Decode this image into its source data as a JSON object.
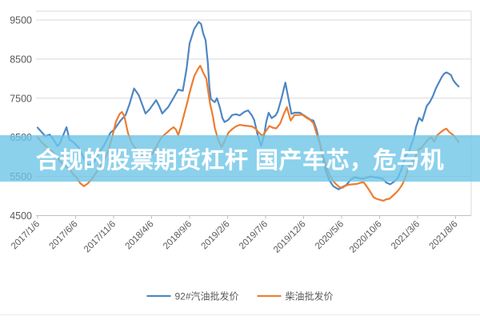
{
  "title_overlay": {
    "text": "合规的股票期货杠杆 国产车芯，危与机",
    "band_color": "rgba(110,198,231,0.8)",
    "text_color": "#ffffff"
  },
  "chart_data": {
    "type": "line",
    "title": "",
    "xlabel": "",
    "ylabel": "",
    "grid": "horizontal",
    "legend_position": "bottom",
    "ylim": [
      4500,
      9500
    ],
    "y_ticks": [
      9500,
      8500,
      7500,
      6500,
      5500,
      4500
    ],
    "x_tick_labels": [
      "2017/1/6",
      "2017/6/6",
      "2017/11/6",
      "2018/4/6",
      "2018/9/6",
      "2019/2/6",
      "2019/7/6",
      "2019/12/6",
      "2020/5/6",
      "2020/10/6",
      "2021/3/6",
      "2021/8/6"
    ],
    "x_tick_month_indices": [
      0,
      5,
      10,
      15,
      20,
      25,
      30,
      35,
      40,
      45,
      50,
      55
    ],
    "x_unit": "months since 2017/1/6",
    "colors": {
      "grid": "#d9d9d9",
      "axis": "#bfbfbf",
      "tick_text": "#595959"
    },
    "series": [
      {
        "name": "92#汽油批发价",
        "color": "#4e87c3",
        "points": [
          [
            0,
            6750
          ],
          [
            1,
            6530
          ],
          [
            1.6,
            6570
          ],
          [
            2.1,
            6440
          ],
          [
            2.6,
            6280
          ],
          [
            2.9,
            6330
          ],
          [
            3.8,
            6760
          ],
          [
            4.2,
            6440
          ],
          [
            4.7,
            6380
          ],
          [
            5.4,
            6240
          ],
          [
            5.9,
            6030
          ],
          [
            6.4,
            5860
          ],
          [
            6.8,
            5770
          ],
          [
            7.4,
            5860
          ],
          [
            7.8,
            6000
          ],
          [
            8.2,
            6140
          ],
          [
            8.7,
            6280
          ],
          [
            9.6,
            6620
          ],
          [
            10.1,
            6700
          ],
          [
            10.8,
            6900
          ],
          [
            11.6,
            7080
          ],
          [
            12.1,
            7350
          ],
          [
            12.7,
            7750
          ],
          [
            13.3,
            7580
          ],
          [
            13.8,
            7320
          ],
          [
            14.2,
            7110
          ],
          [
            14.7,
            7210
          ],
          [
            15.6,
            7450
          ],
          [
            16,
            7300
          ],
          [
            16.4,
            7110
          ],
          [
            17.2,
            7280
          ],
          [
            17.9,
            7510
          ],
          [
            18.5,
            7720
          ],
          [
            19.1,
            7690
          ],
          [
            19.6,
            8250
          ],
          [
            20,
            8900
          ],
          [
            20.6,
            9270
          ],
          [
            21.2,
            9450
          ],
          [
            21.5,
            9400
          ],
          [
            21.8,
            9150
          ],
          [
            22.1,
            8980
          ],
          [
            22.4,
            8400
          ],
          [
            22.6,
            7800
          ],
          [
            22.8,
            7480
          ],
          [
            23.3,
            7400
          ],
          [
            23.6,
            7500
          ],
          [
            24,
            7250
          ],
          [
            24.3,
            7000
          ],
          [
            24.6,
            6890
          ],
          [
            25.1,
            6950
          ],
          [
            25.6,
            7070
          ],
          [
            26.1,
            7090
          ],
          [
            26.6,
            7060
          ],
          [
            27.2,
            7150
          ],
          [
            27.7,
            7190
          ],
          [
            28.2,
            7060
          ],
          [
            28.5,
            6940
          ],
          [
            28.9,
            6600
          ],
          [
            29.4,
            6280
          ],
          [
            29.8,
            6550
          ],
          [
            30.1,
            6900
          ],
          [
            30.4,
            7130
          ],
          [
            30.8,
            6990
          ],
          [
            31.3,
            7060
          ],
          [
            31.6,
            7160
          ],
          [
            32.1,
            7500
          ],
          [
            32.6,
            7900
          ],
          [
            33.1,
            7400
          ],
          [
            33.4,
            7100
          ],
          [
            33.8,
            7130
          ],
          [
            34.5,
            7130
          ],
          [
            35.3,
            7030
          ],
          [
            35.9,
            6950
          ],
          [
            36.3,
            6930
          ],
          [
            36.7,
            6700
          ],
          [
            37.2,
            6300
          ],
          [
            37.6,
            5900
          ],
          [
            38,
            5600
          ],
          [
            38.4,
            5400
          ],
          [
            38.9,
            5250
          ],
          [
            39.6,
            5170
          ],
          [
            40.1,
            5230
          ],
          [
            40.6,
            5280
          ],
          [
            41.2,
            5420
          ],
          [
            41.7,
            5480
          ],
          [
            42.2,
            5460
          ],
          [
            42.7,
            5440
          ],
          [
            43.3,
            5470
          ],
          [
            43.8,
            5500
          ],
          [
            44.3,
            5480
          ],
          [
            44.8,
            5470
          ],
          [
            45.4,
            5440
          ],
          [
            45.9,
            5340
          ],
          [
            46.4,
            5300
          ],
          [
            46.9,
            5370
          ],
          [
            47.4,
            5460
          ],
          [
            47.9,
            5700
          ],
          [
            48.4,
            6020
          ],
          [
            48.9,
            6160
          ],
          [
            49.5,
            6500
          ],
          [
            49.8,
            6770
          ],
          [
            50.2,
            7000
          ],
          [
            50.6,
            6920
          ],
          [
            51.2,
            7300
          ],
          [
            51.6,
            7400
          ],
          [
            52,
            7550
          ],
          [
            52.4,
            7750
          ],
          [
            52.8,
            7900
          ],
          [
            53.2,
            8050
          ],
          [
            53.5,
            8130
          ],
          [
            53.8,
            8160
          ],
          [
            54.1,
            8130
          ],
          [
            54.4,
            8090
          ],
          [
            54.7,
            7960
          ],
          [
            55,
            7880
          ],
          [
            55.4,
            7800
          ]
        ]
      },
      {
        "name": "柴油批发价",
        "color": "#ED7D31",
        "points": [
          [
            0,
            6500
          ],
          [
            0.5,
            6380
          ],
          [
            1.1,
            6270
          ],
          [
            1.6,
            6190
          ],
          [
            2.1,
            6100
          ],
          [
            2.6,
            5980
          ],
          [
            3.2,
            5840
          ],
          [
            3.7,
            5750
          ],
          [
            4.2,
            5690
          ],
          [
            4.7,
            5550
          ],
          [
            5.1,
            5480
          ],
          [
            5.6,
            5330
          ],
          [
            6.1,
            5250
          ],
          [
            6.6,
            5320
          ],
          [
            7.2,
            5450
          ],
          [
            7.7,
            5600
          ],
          [
            8.2,
            5730
          ],
          [
            8.7,
            5900
          ],
          [
            9.3,
            6150
          ],
          [
            9.8,
            6500
          ],
          [
            10.3,
            6900
          ],
          [
            10.8,
            7100
          ],
          [
            11.1,
            7150
          ],
          [
            11.4,
            7050
          ],
          [
            11.9,
            6600
          ],
          [
            12.4,
            6350
          ],
          [
            12.9,
            6200
          ],
          [
            13.5,
            6100
          ],
          [
            14,
            6000
          ],
          [
            14.4,
            5960
          ],
          [
            15.1,
            6080
          ],
          [
            15.6,
            6250
          ],
          [
            16,
            6400
          ],
          [
            16.4,
            6520
          ],
          [
            16.9,
            6600
          ],
          [
            17.4,
            6690
          ],
          [
            17.9,
            6760
          ],
          [
            18.2,
            6700
          ],
          [
            18.5,
            6560
          ],
          [
            18.9,
            6800
          ],
          [
            19.3,
            7100
          ],
          [
            19.7,
            7400
          ],
          [
            20,
            7640
          ],
          [
            20.3,
            7850
          ],
          [
            20.6,
            8060
          ],
          [
            21.1,
            8250
          ],
          [
            21.4,
            8330
          ],
          [
            21.8,
            8150
          ],
          [
            22.2,
            8000
          ],
          [
            22.5,
            7600
          ],
          [
            22.7,
            7360
          ],
          [
            23.1,
            7000
          ],
          [
            23.3,
            6750
          ],
          [
            23.6,
            6550
          ],
          [
            23.8,
            6420
          ],
          [
            24.2,
            6250
          ],
          [
            24.6,
            6400
          ],
          [
            25.1,
            6620
          ],
          [
            25.6,
            6710
          ],
          [
            26.1,
            6780
          ],
          [
            26.6,
            6820
          ],
          [
            27.2,
            6800
          ],
          [
            27.7,
            6790
          ],
          [
            28.2,
            6780
          ],
          [
            28.7,
            6720
          ],
          [
            29.2,
            6600
          ],
          [
            29.6,
            6540
          ],
          [
            30,
            6650
          ],
          [
            30.5,
            6790
          ],
          [
            30.9,
            6750
          ],
          [
            31.4,
            6730
          ],
          [
            31.9,
            6850
          ],
          [
            32.4,
            7100
          ],
          [
            32.8,
            7270
          ],
          [
            33.3,
            6930
          ],
          [
            33.8,
            7070
          ],
          [
            34.3,
            7070
          ],
          [
            34.8,
            7080
          ],
          [
            35.4,
            7000
          ],
          [
            35.9,
            6940
          ],
          [
            36.3,
            6860
          ],
          [
            36.7,
            6600
          ],
          [
            37.2,
            6300
          ],
          [
            37.6,
            6000
          ],
          [
            38,
            5750
          ],
          [
            38.4,
            5550
          ],
          [
            38.8,
            5400
          ],
          [
            39.3,
            5300
          ],
          [
            39.7,
            5230
          ],
          [
            40.1,
            5210
          ],
          [
            40.5,
            5260
          ],
          [
            40.9,
            5290
          ],
          [
            41.5,
            5300
          ],
          [
            42,
            5310
          ],
          [
            42.5,
            5340
          ],
          [
            42.9,
            5350
          ],
          [
            43.4,
            5220
          ],
          [
            43.8,
            5100
          ],
          [
            44.2,
            4970
          ],
          [
            44.6,
            4930
          ],
          [
            45.1,
            4900
          ],
          [
            45.5,
            4880
          ],
          [
            45.9,
            4920
          ],
          [
            46.3,
            4930
          ],
          [
            46.7,
            5000
          ],
          [
            47.2,
            5090
          ],
          [
            47.6,
            5180
          ],
          [
            48,
            5300
          ],
          [
            48.4,
            5480
          ],
          [
            48.8,
            5730
          ],
          [
            49.3,
            5870
          ],
          [
            49.7,
            6000
          ],
          [
            50.1,
            6190
          ],
          [
            50.5,
            6230
          ],
          [
            50.9,
            6330
          ],
          [
            51.4,
            6450
          ],
          [
            51.8,
            6500
          ],
          [
            52.2,
            6390
          ],
          [
            52.6,
            6560
          ],
          [
            53.1,
            6640
          ],
          [
            53.5,
            6700
          ],
          [
            53.8,
            6720
          ],
          [
            54.1,
            6650
          ],
          [
            54.4,
            6600
          ],
          [
            54.7,
            6560
          ],
          [
            55,
            6480
          ],
          [
            55.4,
            6380
          ]
        ]
      }
    ]
  }
}
